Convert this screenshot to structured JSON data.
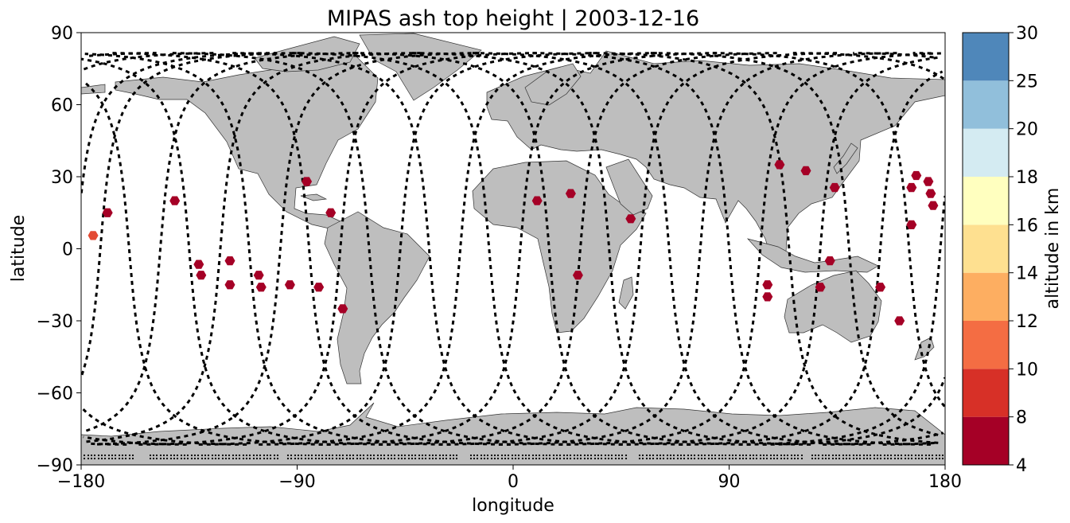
{
  "title": "MIPAS ash top height | 2003-12-16",
  "map": {
    "x_axis": {
      "label": "longitude",
      "range": [
        -180,
        180
      ],
      "ticks": [
        "−180",
        "−90",
        "0",
        "90",
        "180"
      ],
      "tick_values": [
        -180,
        -90,
        0,
        90,
        180
      ]
    },
    "y_axis": {
      "label": "latitude",
      "range": [
        -90,
        90
      ],
      "ticks": [
        "90",
        "60",
        "30",
        "0",
        "−30",
        "−60",
        "−90"
      ],
      "tick_values": [
        90,
        60,
        30,
        0,
        -30,
        -60,
        -90
      ]
    },
    "land_color": "#bebebe",
    "coast_color": "#333333",
    "track_color": "#000000",
    "projection": "plate carree"
  },
  "colorbar": {
    "label": "altitude in km",
    "tick_labels": [
      "4",
      "8",
      "10",
      "12",
      "14",
      "16",
      "18",
      "20",
      "25",
      "30"
    ],
    "colors": [
      "#a50026",
      "#d73027",
      "#f46d43",
      "#fdae61",
      "#fee090",
      "#ffffbf",
      "#d4ebf2",
      "#91bfdb",
      "#4f87ba",
      "#313695"
    ]
  },
  "chart_data": {
    "type": "scatter",
    "title": "MIPAS ash top height | 2003-12-16",
    "xlabel": "longitude",
    "ylabel": "latitude",
    "xlim": [
      -180,
      180
    ],
    "ylim": [
      -90,
      90
    ],
    "colorbar_label": "altitude in km",
    "colorbar_bounds": [
      4,
      8,
      10,
      12,
      14,
      16,
      18,
      20,
      25,
      30
    ],
    "marker": "hexagon",
    "points": [
      {
        "lon": -175,
        "lat": 5.5,
        "color": "#e34a33"
      },
      {
        "lon": -169,
        "lat": 15,
        "color": "#a50026"
      },
      {
        "lon": -141,
        "lat": 20,
        "color": "#a50026"
      },
      {
        "lon": -131,
        "lat": -6.5,
        "color": "#a50026"
      },
      {
        "lon": -130,
        "lat": -11,
        "color": "#a50026"
      },
      {
        "lon": -118,
        "lat": -5,
        "color": "#a50026"
      },
      {
        "lon": -118,
        "lat": -15,
        "color": "#a50026"
      },
      {
        "lon": -106,
        "lat": -11,
        "color": "#a50026"
      },
      {
        "lon": -105,
        "lat": -16,
        "color": "#a50026"
      },
      {
        "lon": -93,
        "lat": -15,
        "color": "#a50026"
      },
      {
        "lon": -86,
        "lat": 28,
        "color": "#a50026"
      },
      {
        "lon": -81,
        "lat": -16,
        "color": "#a50026"
      },
      {
        "lon": -76,
        "lat": 15,
        "color": "#a50026"
      },
      {
        "lon": -71,
        "lat": -25,
        "color": "#a50026"
      },
      {
        "lon": 10,
        "lat": 20,
        "color": "#a50026"
      },
      {
        "lon": 24,
        "lat": 23,
        "color": "#a50026"
      },
      {
        "lon": 27,
        "lat": -11,
        "color": "#a50026"
      },
      {
        "lon": 49,
        "lat": 12.5,
        "color": "#a50026"
      },
      {
        "lon": 106,
        "lat": -15,
        "color": "#a50026"
      },
      {
        "lon": 106,
        "lat": -20,
        "color": "#a50026"
      },
      {
        "lon": 111,
        "lat": 35,
        "color": "#a50026"
      },
      {
        "lon": 122,
        "lat": 32.5,
        "color": "#a50026"
      },
      {
        "lon": 128,
        "lat": -16,
        "color": "#a50026"
      },
      {
        "lon": 132,
        "lat": -5,
        "color": "#a50026"
      },
      {
        "lon": 134,
        "lat": 25.5,
        "color": "#a50026"
      },
      {
        "lon": 153,
        "lat": -16,
        "color": "#a50026"
      },
      {
        "lon": 161,
        "lat": -30,
        "color": "#a50026"
      },
      {
        "lon": 166,
        "lat": 10,
        "color": "#a50026"
      },
      {
        "lon": 166,
        "lat": 25.5,
        "color": "#a50026"
      },
      {
        "lon": 168,
        "lat": 30.5,
        "color": "#a50026"
      },
      {
        "lon": 173,
        "lat": 28,
        "color": "#a50026"
      },
      {
        "lon": 174,
        "lat": 23,
        "color": "#a50026"
      },
      {
        "lon": 175,
        "lat": 18,
        "color": "#a50026"
      }
    ],
    "tracks": [
      {
        "ascending": true,
        "equator_lon": -172
      },
      {
        "ascending": true,
        "equator_lon": -147
      },
      {
        "ascending": true,
        "equator_lon": -122
      },
      {
        "ascending": true,
        "equator_lon": -97
      },
      {
        "ascending": true,
        "equator_lon": -72
      },
      {
        "ascending": true,
        "equator_lon": -47
      },
      {
        "ascending": true,
        "equator_lon": -22
      },
      {
        "ascending": true,
        "equator_lon": 3
      },
      {
        "ascending": true,
        "equator_lon": 28
      },
      {
        "ascending": true,
        "equator_lon": 53
      },
      {
        "ascending": true,
        "equator_lon": 78
      },
      {
        "ascending": true,
        "equator_lon": 103
      },
      {
        "ascending": true,
        "equator_lon": 128
      },
      {
        "ascending": true,
        "equator_lon": 153
      },
      {
        "ascending": true,
        "equator_lon": 178
      },
      {
        "ascending": false,
        "equator_lon": -160
      },
      {
        "ascending": false,
        "equator_lon": -135
      },
      {
        "ascending": false,
        "equator_lon": -110
      },
      {
        "ascending": false,
        "equator_lon": -85
      },
      {
        "ascending": false,
        "equator_lon": -60
      },
      {
        "ascending": false,
        "equator_lon": -35
      },
      {
        "ascending": false,
        "equator_lon": -10
      },
      {
        "ascending": false,
        "equator_lon": 15
      },
      {
        "ascending": false,
        "equator_lon": 40
      },
      {
        "ascending": false,
        "equator_lon": 65
      },
      {
        "ascending": false,
        "equator_lon": 90
      },
      {
        "ascending": false,
        "equator_lon": 115
      },
      {
        "ascending": false,
        "equator_lon": 140
      },
      {
        "ascending": false,
        "equator_lon": 165
      }
    ]
  }
}
